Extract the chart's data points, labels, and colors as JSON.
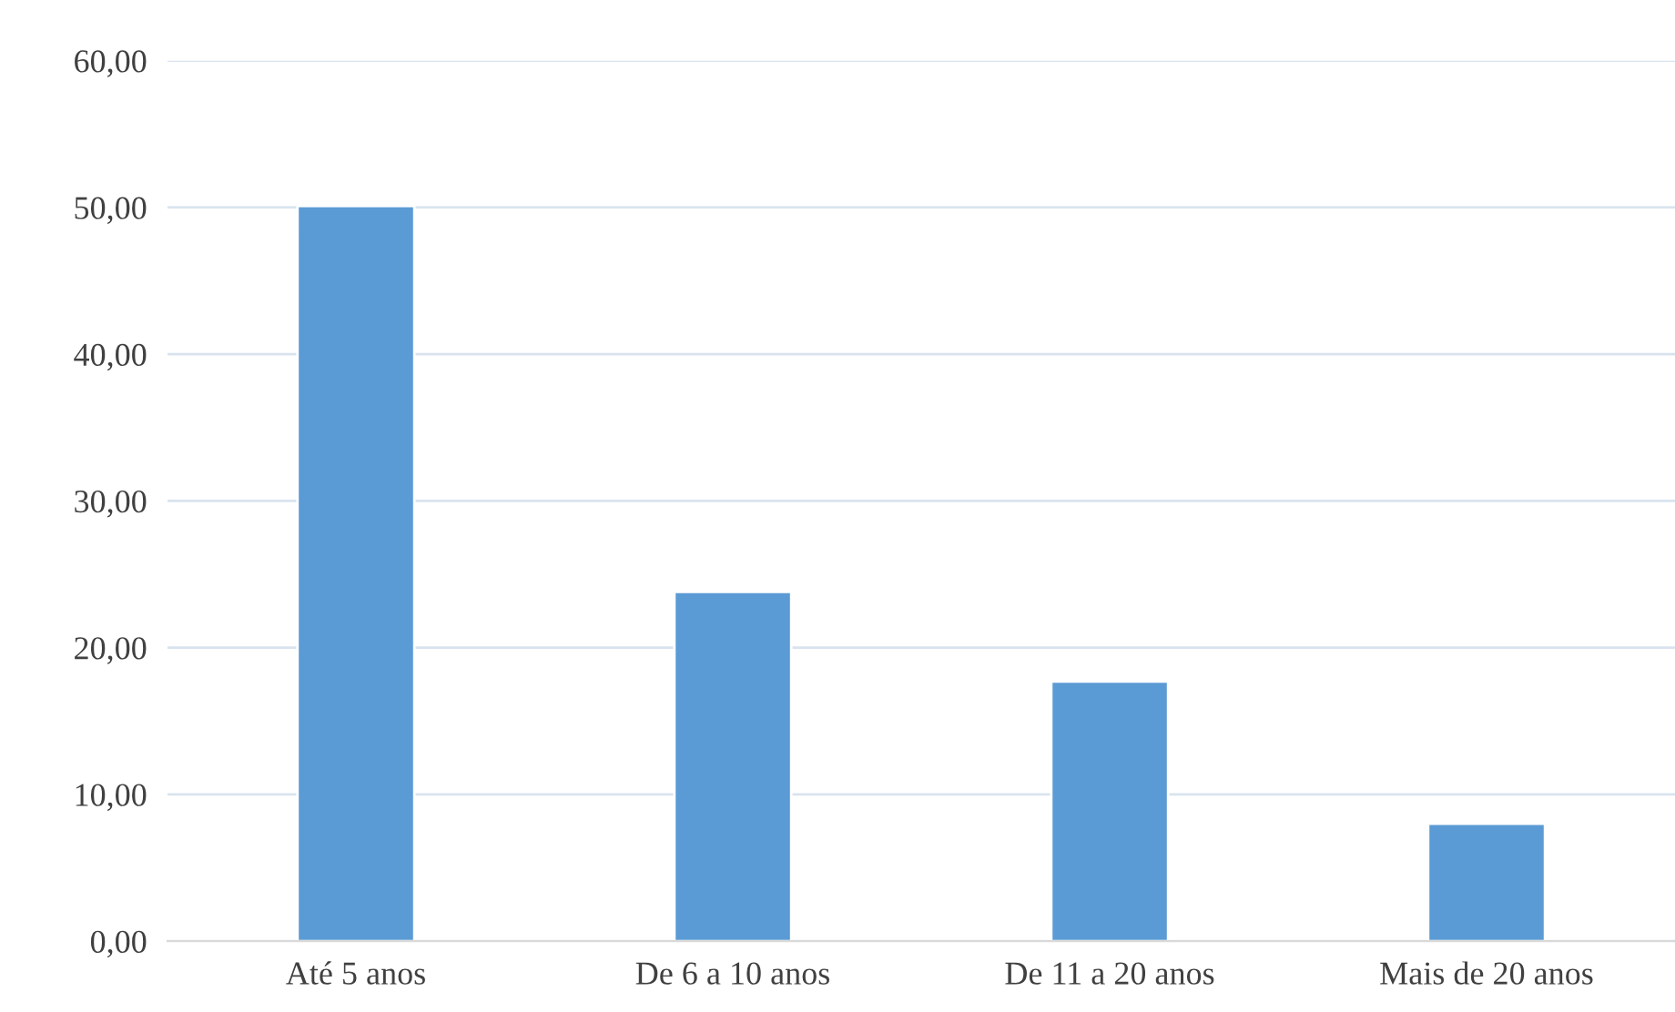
{
  "chart_data": {
    "type": "bar",
    "categories": [
      "Até 5 anos",
      "De 6 a 10 anos",
      "De 11 a 20 anos",
      "Mais de 20 anos"
    ],
    "values": [
      50.1,
      23.8,
      17.7,
      8.0
    ],
    "color": "#5b9bd5",
    "ylim": [
      0,
      60
    ],
    "yticks": [
      {
        "value": 0,
        "label": "0,00"
      },
      {
        "value": 10,
        "label": "10,00"
      },
      {
        "value": 20,
        "label": "20,00"
      },
      {
        "value": 30,
        "label": "30,00"
      },
      {
        "value": 40,
        "label": "40,00"
      },
      {
        "value": 50,
        "label": "50,00"
      },
      {
        "value": 60,
        "label": "60,00"
      }
    ],
    "grid": "y"
  }
}
